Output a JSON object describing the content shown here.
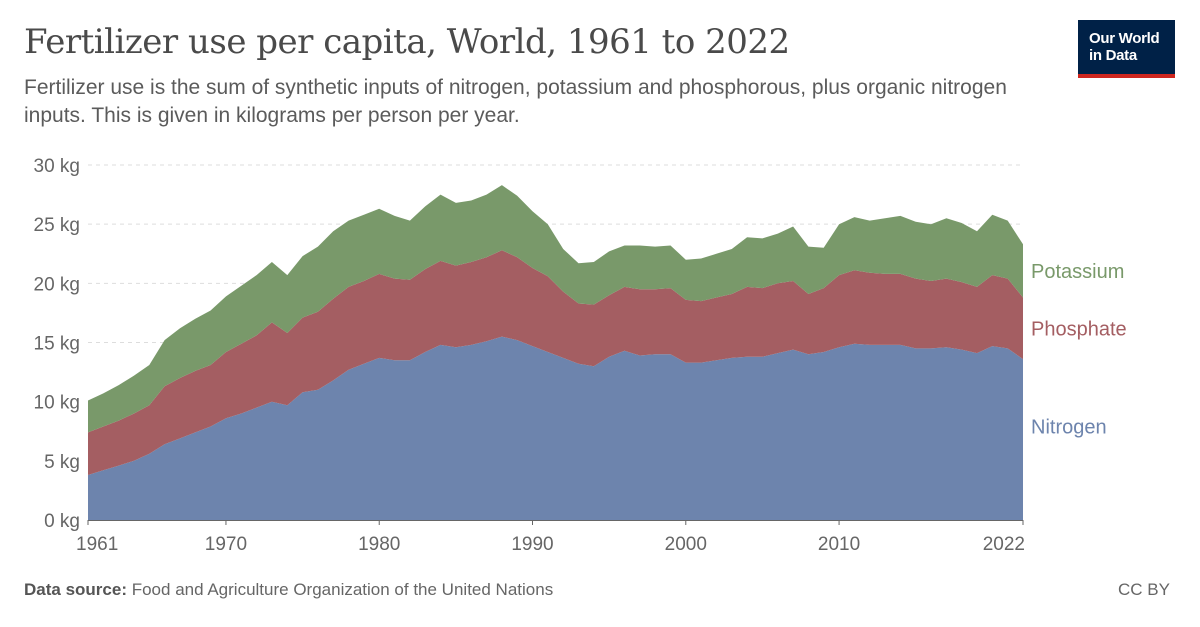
{
  "header": {
    "title": "Fertilizer use per capita, World, 1961 to 2022",
    "subtitle": "Fertilizer use is the sum of synthetic inputs of nitrogen, potassium and phosphorous, plus organic nitrogen inputs. This is given in kilograms per person per year."
  },
  "logo": {
    "line1": "Our World",
    "line2": "in Data",
    "bg": "#002147",
    "accent": "#ce261e"
  },
  "footer": {
    "source_label": "Data source:",
    "source_text": "Food and Agriculture Organization of the United Nations",
    "license": "CC BY"
  },
  "chart_data": {
    "type": "area",
    "stacked": true,
    "grid": true,
    "legend_placement": "right (inline labels at line ends)",
    "xlim": [
      1961,
      2022
    ],
    "ylim": [
      0,
      30
    ],
    "x_ticks": [
      1961,
      1970,
      1980,
      1990,
      2000,
      2010,
      2022
    ],
    "x_tick_labels": [
      "1961",
      "1970",
      "1980",
      "1990",
      "2000",
      "2010",
      "2022"
    ],
    "y_ticks": [
      0,
      5,
      10,
      15,
      20,
      25,
      30
    ],
    "y_tick_labels": [
      "0 kg",
      "5 kg",
      "10 kg",
      "15 kg",
      "20 kg",
      "25 kg",
      "30 kg"
    ],
    "x": [
      1961,
      1962,
      1963,
      1964,
      1965,
      1966,
      1967,
      1968,
      1969,
      1970,
      1971,
      1972,
      1973,
      1974,
      1975,
      1976,
      1977,
      1978,
      1979,
      1980,
      1981,
      1982,
      1983,
      1984,
      1985,
      1986,
      1987,
      1988,
      1989,
      1990,
      1991,
      1992,
      1993,
      1994,
      1995,
      1996,
      1997,
      1998,
      1999,
      2000,
      2001,
      2002,
      2003,
      2004,
      2005,
      2006,
      2007,
      2008,
      2009,
      2010,
      2011,
      2012,
      2013,
      2014,
      2015,
      2016,
      2017,
      2018,
      2019,
      2020,
      2021,
      2022
    ],
    "series": [
      {
        "name": "Nitrogen",
        "color": "#6d84ad",
        "values": [
          3.8,
          4.2,
          4.6,
          5.0,
          5.6,
          6.4,
          6.9,
          7.4,
          7.9,
          8.6,
          9.0,
          9.5,
          10.0,
          9.7,
          10.8,
          11.0,
          11.8,
          12.7,
          13.2,
          13.7,
          13.5,
          13.5,
          14.2,
          14.8,
          14.6,
          14.8,
          15.1,
          15.5,
          15.2,
          14.7,
          14.2,
          13.7,
          13.2,
          13.0,
          13.8,
          14.3,
          13.9,
          14.0,
          14.0,
          13.3,
          13.3,
          13.5,
          13.7,
          13.8,
          13.8,
          14.1,
          14.4,
          14.0,
          14.2,
          14.6,
          14.9,
          14.8,
          14.8,
          14.8,
          14.5,
          14.5,
          14.6,
          14.4,
          14.1,
          14.7,
          14.5,
          13.6
        ]
      },
      {
        "name": "Phosphate",
        "color": "#a45e62",
        "values": [
          3.6,
          3.7,
          3.8,
          4.0,
          4.1,
          4.9,
          5.1,
          5.2,
          5.2,
          5.6,
          5.9,
          6.1,
          6.7,
          6.1,
          6.3,
          6.6,
          6.9,
          7.0,
          7.0,
          7.1,
          6.9,
          6.8,
          7.0,
          7.1,
          6.9,
          7.0,
          7.1,
          7.3,
          7.0,
          6.6,
          6.4,
          5.6,
          5.1,
          5.2,
          5.2,
          5.4,
          5.6,
          5.5,
          5.6,
          5.3,
          5.2,
          5.3,
          5.4,
          5.9,
          5.8,
          5.9,
          5.8,
          5.1,
          5.4,
          6.1,
          6.2,
          6.1,
          6.0,
          6.0,
          5.9,
          5.7,
          5.8,
          5.7,
          5.6,
          6.0,
          5.9,
          5.2
        ]
      },
      {
        "name": "Potassium",
        "color": "#79996a",
        "values": [
          2.7,
          2.8,
          3.0,
          3.2,
          3.4,
          3.9,
          4.2,
          4.4,
          4.6,
          4.7,
          4.9,
          5.1,
          5.1,
          4.9,
          5.2,
          5.5,
          5.7,
          5.6,
          5.6,
          5.5,
          5.3,
          5.0,
          5.3,
          5.6,
          5.3,
          5.2,
          5.3,
          5.5,
          5.2,
          4.8,
          4.4,
          3.6,
          3.4,
          3.6,
          3.7,
          3.5,
          3.7,
          3.6,
          3.6,
          3.4,
          3.6,
          3.7,
          3.8,
          4.2,
          4.2,
          4.2,
          4.6,
          4.0,
          3.4,
          4.3,
          4.5,
          4.4,
          4.7,
          4.9,
          4.8,
          4.8,
          5.1,
          5.0,
          4.7,
          5.1,
          4.9,
          4.5
        ]
      }
    ]
  }
}
